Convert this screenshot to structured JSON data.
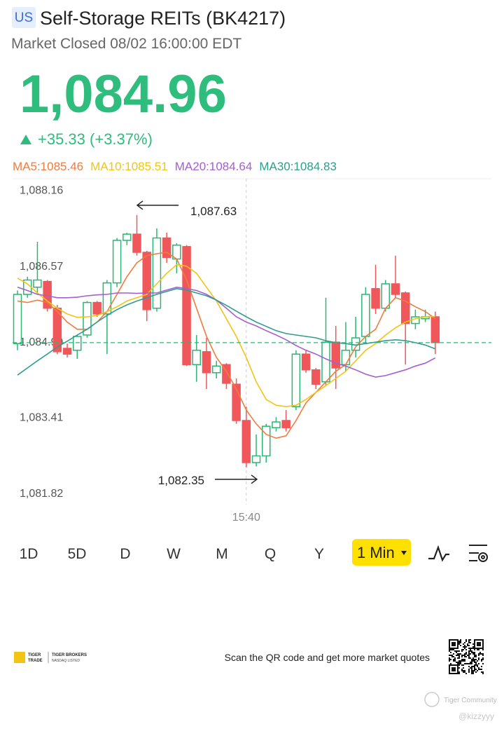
{
  "header": {
    "market": "US",
    "title": "Self-Storage REITs (BK4217)",
    "status": "Market Closed 08/02 16:00:00 EDT",
    "price": "1,084.96",
    "change": "+35.33 (+3.37%)"
  },
  "chart_data": {
    "type": "candlestick",
    "categories": [
      null,
      null,
      null,
      null,
      null,
      null,
      null,
      null,
      null,
      null,
      null,
      null,
      null,
      null,
      null,
      null,
      null,
      null,
      null,
      null,
      null,
      null,
      null,
      "15:40",
      null,
      null,
      null,
      null,
      null,
      null,
      null,
      null,
      null,
      null,
      null,
      null,
      null,
      null,
      null,
      null,
      null,
      null,
      null
    ],
    "open": [
      1084.94,
      1085.97,
      1086.12,
      1086.24,
      1085.68,
      1084.84,
      1084.8,
      1085.12,
      1085.8,
      1085.56,
      1086.21,
      1087.1,
      1087.23,
      1086.85,
      1085.68,
      1087.15,
      1086.71,
      1086.97,
      1084.5,
      1084.77,
      1084.33,
      1084.5,
      1084.09,
      1083.33,
      1082.45,
      1082.59,
      1083.18,
      1083.33,
      1083.62,
      1084.72,
      1084.39,
      1084.14,
      1084.97,
      1084.5,
      1084.8,
      1085.09,
      1086.09,
      1085.68,
      1086.19,
      1086.0,
      1085.36,
      1085.46,
      1085.5
    ],
    "high": [
      1086.05,
      1086.34,
      1087.07,
      1086.27,
      1085.75,
      1084.94,
      1085.12,
      1085.83,
      1085.83,
      1086.27,
      1087.15,
      1087.26,
      1087.63,
      1086.88,
      1087.35,
      1087.26,
      1087.04,
      1087.0,
      1085.12,
      1085.06,
      1084.58,
      1084.53,
      1084.21,
      1083.62,
      1083.04,
      1083.26,
      1083.4,
      1083.55,
      1084.8,
      1084.8,
      1084.43,
      1085.9,
      1085.31,
      1085.39,
      1085.5,
      1086.12,
      1086.59,
      1086.27,
      1086.78,
      1086.03,
      1085.65,
      1085.65,
      1085.61
    ],
    "low": [
      1084.8,
      1085.9,
      1085.97,
      1085.61,
      1084.72,
      1084.65,
      1084.62,
      1085.06,
      1085.5,
      1084.72,
      1086.12,
      1087.0,
      1086.78,
      1085.41,
      1085.61,
      1086.63,
      1086.41,
      1084.47,
      1084.14,
      1083.99,
      1084.21,
      1083.99,
      1083.26,
      1082.35,
      1082.37,
      1082.45,
      1083.1,
      1083.1,
      1083.55,
      1084.33,
      1083.99,
      1084.06,
      1083.99,
      1084.36,
      1084.65,
      1084.94,
      1085.56,
      1085.61,
      1085.9,
      1084.5,
      1085.24,
      1085.39,
      1084.72
    ],
    "close": [
      1085.97,
      1086.27,
      1086.27,
      1085.68,
      1084.77,
      1084.72,
      1085.09,
      1085.8,
      1085.56,
      1086.21,
      1087.1,
      1087.23,
      1086.85,
      1085.65,
      1087.15,
      1086.74,
      1087.0,
      1084.5,
      1084.8,
      1084.33,
      1084.47,
      1084.11,
      1083.33,
      1082.45,
      1082.59,
      1083.21,
      1083.3,
      1083.18,
      1084.72,
      1084.39,
      1084.09,
      1084.97,
      1084.43,
      1084.8,
      1085.06,
      1085.97,
      1085.68,
      1086.19,
      1085.97,
      1085.36,
      1085.5,
      1085.5,
      1084.96
    ],
    "up_color": "#2bb673",
    "down_color": "#f0575a",
    "series": [
      {
        "name": "MA5:1085.46",
        "color": "#f07b3f",
        "values": [
          1085.83,
          1085.8,
          1085.85,
          1085.8,
          1085.61,
          1085.39,
          1085.24,
          1085.24,
          1085.39,
          1085.61,
          1085.97,
          1086.34,
          1086.63,
          1086.78,
          1086.82,
          1086.85,
          1086.71,
          1086.27,
          1085.68,
          1085.09,
          1084.65,
          1084.36,
          1083.99,
          1083.55,
          1083.26,
          1083.04,
          1082.96,
          1083.01,
          1083.33,
          1083.7,
          1083.92,
          1084.14,
          1084.36,
          1084.5,
          1084.87,
          1085.09,
          1085.24,
          1085.68,
          1085.9,
          1085.83,
          1085.71,
          1085.61,
          1085.46
        ]
      },
      {
        "name": "MA10:1085.51",
        "color": "#f2c413",
        "values": [
          1086.31,
          1086.19,
          1086.0,
          1085.83,
          1085.68,
          1085.56,
          1085.49,
          1085.5,
          1085.53,
          1085.61,
          1085.71,
          1085.83,
          1085.9,
          1085.97,
          1086.19,
          1086.41,
          1086.59,
          1086.56,
          1086.41,
          1086.12,
          1085.83,
          1085.46,
          1085.09,
          1084.65,
          1084.14,
          1083.77,
          1083.65,
          1083.62,
          1083.65,
          1083.77,
          1083.92,
          1084.06,
          1084.21,
          1084.36,
          1084.58,
          1084.8,
          1084.94,
          1085.12,
          1085.27,
          1085.39,
          1085.46,
          1085.5,
          1085.51
        ]
      },
      {
        "name": "MA20:1084.64",
        "color": "#a45fd0",
        "values": [
          1086.12,
          1086.05,
          1085.97,
          1085.94,
          1085.9,
          1085.9,
          1085.91,
          1085.94,
          1085.96,
          1085.97,
          1086.0,
          1086.0,
          1085.99,
          1086.0,
          1086.0,
          1086.06,
          1086.12,
          1086.09,
          1086.05,
          1085.97,
          1085.85,
          1085.68,
          1085.5,
          1085.39,
          1085.31,
          1085.21,
          1085.12,
          1085.02,
          1084.9,
          1084.8,
          1084.72,
          1084.62,
          1084.53,
          1084.47,
          1084.39,
          1084.3,
          1084.24,
          1084.27,
          1084.33,
          1084.39,
          1084.47,
          1084.53,
          1084.64
        ]
      },
      {
        "name": "MA30:1084.83",
        "color": "#2e9d8e",
        "values": [
          1084.28,
          1084.43,
          1084.58,
          1084.72,
          1084.87,
          1084.99,
          1085.12,
          1085.24,
          1085.39,
          1085.53,
          1085.65,
          1085.75,
          1085.83,
          1085.9,
          1085.97,
          1086.03,
          1086.09,
          1086.06,
          1086.0,
          1085.94,
          1085.85,
          1085.74,
          1085.62,
          1085.5,
          1085.39,
          1085.3,
          1085.21,
          1085.15,
          1085.12,
          1085.09,
          1085.06,
          1085.0,
          1084.96,
          1084.94,
          1084.91,
          1084.94,
          1084.97,
          1085.0,
          1085.02,
          1085.0,
          1084.96,
          1084.91,
          1084.83
        ]
      }
    ],
    "ylim": [
      1081.57,
      1088.39
    ],
    "yticks": [
      {
        "value": 1088.16,
        "label": "1,088.16"
      },
      {
        "value": 1086.57,
        "label": "1,086.57"
      },
      {
        "value": 1084.99,
        "label": "1,084.99"
      },
      {
        "value": 1083.41,
        "label": "1,083.41"
      },
      {
        "value": 1081.82,
        "label": "1,081.82"
      }
    ],
    "price_line": 1084.96,
    "annotations": [
      {
        "label": "1,087.63",
        "value": 1087.63
      },
      {
        "label": "1,082.35",
        "value": 1082.35
      }
    ]
  },
  "tabs": [
    "1D",
    "5D",
    "D",
    "W",
    "M",
    "Q",
    "Y"
  ],
  "interval": "1 Min",
  "footer": {
    "brand": "TIGER",
    "brand_sub": "TRADE",
    "broker": "TIGER BROKERS",
    "listed": "NASDAQ LISTED",
    "scan": "Scan the QR code and get more market quotes",
    "community": "Tiger Community",
    "user": "@kizzyyy"
  }
}
